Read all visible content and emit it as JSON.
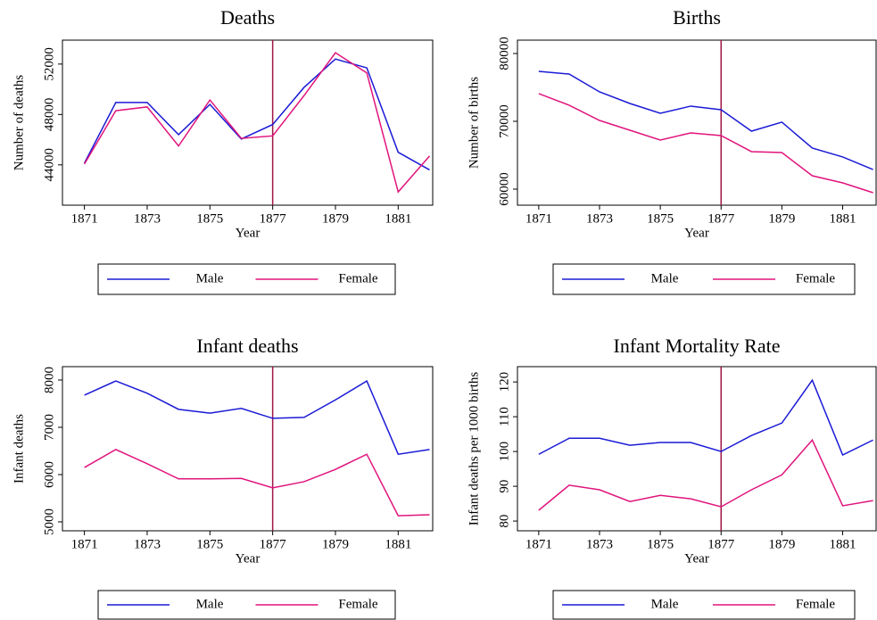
{
  "chart_data": [
    {
      "type": "line",
      "title": "Deaths",
      "x_label": "Year",
      "y_label": "Number of deaths",
      "x": [
        1871,
        1872,
        1873,
        1874,
        1875,
        1876,
        1877,
        1878,
        1879,
        1880,
        1881,
        1882
      ],
      "series": [
        {
          "name": "Male",
          "color": "#1a1ad6",
          "values": [
            44140,
            48950,
            48950,
            46400,
            48800,
            46050,
            47200,
            50150,
            52400,
            51700,
            45000,
            43600
          ]
        },
        {
          "name": "Female",
          "color": "#e0147c",
          "values": [
            44070,
            48300,
            48600,
            45500,
            49150,
            46100,
            46300,
            49500,
            52900,
            51300,
            41850,
            44700
          ]
        }
      ],
      "xlim": [
        1870.3,
        1882.1
      ],
      "xticks": [
        1871,
        1873,
        1875,
        1877,
        1879,
        1881
      ],
      "ylim": [
        40800,
        53900
      ],
      "yticks": [
        44000,
        48000,
        52000
      ],
      "vline": 1877,
      "vline_color": "#a01848"
    },
    {
      "type": "line",
      "title": "Births",
      "x_label": "Year",
      "y_label": "Number of births",
      "x": [
        1871,
        1872,
        1873,
        1874,
        1875,
        1876,
        1877,
        1878,
        1879,
        1880,
        1881,
        1882
      ],
      "series": [
        {
          "name": "Male",
          "color": "#1a1ad6",
          "values": [
            77370,
            76970,
            74340,
            72630,
            71180,
            72240,
            71710,
            68550,
            69870,
            66050,
            64740,
            62890
          ]
        },
        {
          "name": "Female",
          "color": "#e0147c",
          "values": [
            74080,
            72370,
            70130,
            68680,
            67240,
            68290,
            67890,
            65530,
            65390,
            61970,
            60920,
            59470
          ]
        }
      ],
      "xlim": [
        1870.3,
        1882.1
      ],
      "xticks": [
        1871,
        1873,
        1875,
        1877,
        1879,
        1881
      ],
      "ylim": [
        57630,
        81970
      ],
      "yticks": [
        60000,
        70000,
        80000
      ],
      "vline": 1877,
      "vline_color": "#a01848"
    },
    {
      "type": "line",
      "title": "Infant deaths",
      "x_label": "Year",
      "y_label": "Infant deaths",
      "x": [
        1871,
        1872,
        1873,
        1874,
        1875,
        1876,
        1877,
        1878,
        1879,
        1880,
        1881,
        1882
      ],
      "series": [
        {
          "name": "Male",
          "color": "#1a1ad6",
          "values": [
            7680,
            7980,
            7720,
            7380,
            7300,
            7400,
            7190,
            7210,
            7580,
            7980,
            6430,
            6530
          ]
        },
        {
          "name": "Female",
          "color": "#e0147c",
          "values": [
            6150,
            6530,
            6230,
            5910,
            5910,
            5920,
            5720,
            5850,
            6110,
            6430,
            5130,
            5150
          ]
        }
      ],
      "xlim": [
        1870.3,
        1882.1
      ],
      "xticks": [
        1871,
        1873,
        1875,
        1877,
        1879,
        1881
      ],
      "ylim": [
        4811,
        8283
      ],
      "yticks": [
        5000,
        6000,
        7000,
        8000
      ],
      "vline": 1877,
      "vline_color": "#a01848"
    },
    {
      "type": "line",
      "title": "Infant Mortality Rate",
      "x_label": "Year",
      "y_label": "Infant deaths per 1000 births",
      "x": [
        1871,
        1872,
        1873,
        1874,
        1875,
        1876,
        1877,
        1878,
        1879,
        1880,
        1881,
        1882
      ],
      "series": [
        {
          "name": "Male",
          "color": "#1a1ad6",
          "values": [
            99.2,
            103.8,
            103.8,
            101.8,
            102.6,
            102.6,
            100,
            104.6,
            108.2,
            120.5,
            99,
            103.3
          ]
        },
        {
          "name": "Female",
          "color": "#e0147c",
          "values": [
            83.1,
            90.3,
            89,
            85.6,
            87.4,
            86.4,
            84.1,
            89,
            93.3,
            103.3,
            84.4,
            85.9
          ]
        }
      ],
      "xlim": [
        1870.3,
        1882.1
      ],
      "xticks": [
        1871,
        1873,
        1875,
        1877,
        1879,
        1881
      ],
      "ylim": [
        77.2,
        124.4
      ],
      "yticks": [
        80,
        90,
        100,
        110,
        120
      ],
      "vline": 1877,
      "vline_color": "#a01848"
    }
  ]
}
